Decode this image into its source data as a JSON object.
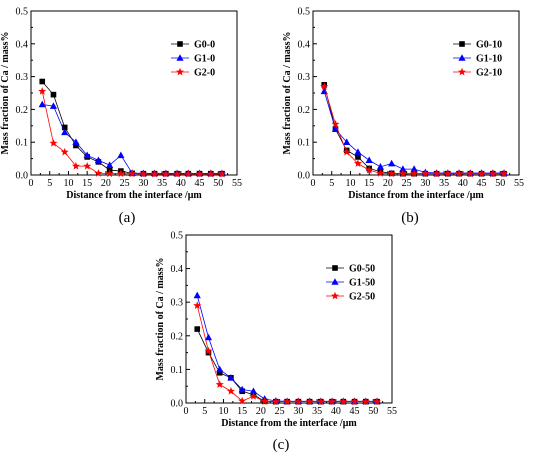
{
  "chart_data": [
    {
      "type": "line",
      "panel_label": "(a)",
      "xlabel": "Distance from the interface /μm",
      "ylabel": "Mass fraction of Ca / mass%",
      "xlim": [
        0,
        55
      ],
      "ylim": [
        0,
        0.5
      ],
      "xticks": [
        "0",
        "5",
        "10",
        "15",
        "20",
        "25",
        "30",
        "35",
        "40",
        "45",
        "50",
        "55"
      ],
      "yticks": [
        "0.0",
        "0.1",
        "0.2",
        "0.3",
        "0.4",
        "0.5"
      ],
      "legend_position": "upper-right",
      "series": [
        {
          "name": "G0-0",
          "color": "#000000",
          "marker": "square",
          "points": [
            [
              3,
              0.285
            ],
            [
              6,
              0.245
            ],
            [
              9,
              0.145
            ],
            [
              12,
              0.09
            ],
            [
              15,
              0.055
            ],
            [
              18,
              0.04
            ],
            [
              21,
              0.015
            ],
            [
              24,
              0.012
            ],
            [
              27,
              0.005
            ],
            [
              30,
              0.004
            ],
            [
              33,
              0.004
            ],
            [
              36,
              0.004
            ],
            [
              39,
              0.004
            ],
            [
              42,
              0.004
            ],
            [
              45,
              0.004
            ],
            [
              48,
              0.004
            ],
            [
              51,
              0.004
            ]
          ]
        },
        {
          "name": "G1-0",
          "color": "#0000ff",
          "marker": "triangle",
          "points": [
            [
              3,
              0.215
            ],
            [
              6,
              0.21
            ],
            [
              9,
              0.13
            ],
            [
              12,
              0.1
            ],
            [
              15,
              0.06
            ],
            [
              18,
              0.045
            ],
            [
              21,
              0.03
            ],
            [
              24,
              0.06
            ],
            [
              27,
              0.006
            ],
            [
              30,
              0.005
            ],
            [
              33,
              0.005
            ],
            [
              36,
              0.005
            ],
            [
              39,
              0.005
            ],
            [
              42,
              0.005
            ],
            [
              45,
              0.005
            ],
            [
              48,
              0.005
            ],
            [
              51,
              0.005
            ]
          ]
        },
        {
          "name": "G2-0",
          "color": "#ff0000",
          "marker": "star",
          "points": [
            [
              3,
              0.255
            ],
            [
              6,
              0.097
            ],
            [
              9,
              0.07
            ],
            [
              12,
              0.027
            ],
            [
              15,
              0.027
            ],
            [
              18,
              0.005
            ],
            [
              21,
              0.004
            ],
            [
              24,
              0.004
            ],
            [
              27,
              0.004
            ],
            [
              30,
              0.003
            ],
            [
              33,
              0.003
            ],
            [
              36,
              0.003
            ],
            [
              39,
              0.003
            ],
            [
              42,
              0.003
            ],
            [
              45,
              0.003
            ],
            [
              48,
              0.003
            ],
            [
              51,
              0.003
            ]
          ]
        }
      ]
    },
    {
      "type": "line",
      "panel_label": "(b)",
      "xlabel": "Distance from the interface /μm",
      "ylabel": "Mass fraction of Ca / mass%",
      "xlim": [
        0,
        55
      ],
      "ylim": [
        0,
        0.5
      ],
      "xticks": [
        "0",
        "5",
        "10",
        "15",
        "20",
        "25",
        "30",
        "35",
        "40",
        "45",
        "50",
        "55"
      ],
      "yticks": [
        "0.0",
        "0.1",
        "0.2",
        "0.3",
        "0.4",
        "0.5"
      ],
      "legend_position": "upper-right",
      "series": [
        {
          "name": "G0-10",
          "color": "#000000",
          "marker": "square",
          "points": [
            [
              3,
              0.275
            ],
            [
              6,
              0.14
            ],
            [
              9,
              0.075
            ],
            [
              12,
              0.055
            ],
            [
              15,
              0.02
            ],
            [
              18,
              0.01
            ],
            [
              21,
              0.005
            ],
            [
              24,
              0.004
            ],
            [
              27,
              0.004
            ],
            [
              30,
              0.004
            ],
            [
              33,
              0.004
            ],
            [
              36,
              0.004
            ],
            [
              39,
              0.004
            ],
            [
              42,
              0.004
            ],
            [
              45,
              0.004
            ],
            [
              48,
              0.004
            ],
            [
              51,
              0.004
            ]
          ]
        },
        {
          "name": "G1-10",
          "color": "#0000ff",
          "marker": "triangle",
          "points": [
            [
              3,
              0.255
            ],
            [
              6,
              0.14
            ],
            [
              9,
              0.1
            ],
            [
              12,
              0.07
            ],
            [
              15,
              0.045
            ],
            [
              18,
              0.025
            ],
            [
              21,
              0.035
            ],
            [
              24,
              0.018
            ],
            [
              27,
              0.018
            ],
            [
              30,
              0.008
            ],
            [
              33,
              0.006
            ],
            [
              36,
              0.006
            ],
            [
              39,
              0.006
            ],
            [
              42,
              0.006
            ],
            [
              45,
              0.006
            ],
            [
              48,
              0.006
            ],
            [
              51,
              0.006
            ]
          ]
        },
        {
          "name": "G2-10",
          "color": "#ff0000",
          "marker": "star",
          "points": [
            [
              3,
              0.27
            ],
            [
              6,
              0.155
            ],
            [
              9,
              0.07
            ],
            [
              12,
              0.035
            ],
            [
              15,
              0.015
            ],
            [
              18,
              0.005
            ],
            [
              21,
              0.004
            ],
            [
              24,
              0.004
            ],
            [
              27,
              0.004
            ],
            [
              30,
              0.004
            ],
            [
              33,
              0.004
            ],
            [
              36,
              0.004
            ],
            [
              39,
              0.004
            ],
            [
              42,
              0.004
            ],
            [
              45,
              0.004
            ],
            [
              48,
              0.004
            ],
            [
              51,
              0.004
            ]
          ]
        }
      ]
    },
    {
      "type": "line",
      "panel_label": "(c)",
      "xlabel": "Distance from the interface /μm",
      "ylabel": "Mass fraction of Ca / mass%",
      "xlim": [
        0,
        55
      ],
      "ylim": [
        0,
        0.5
      ],
      "xticks": [
        "0",
        "5",
        "10",
        "15",
        "20",
        "25",
        "30",
        "35",
        "40",
        "45",
        "50",
        "55"
      ],
      "yticks": [
        "0.0",
        "0.1",
        "0.2",
        "0.3",
        "0.4",
        "0.5"
      ],
      "legend_position": "upper-right",
      "series": [
        {
          "name": "G0-50",
          "color": "#000000",
          "marker": "square",
          "points": [
            [
              3,
              0.22
            ],
            [
              6,
              0.15
            ],
            [
              9,
              0.09
            ],
            [
              12,
              0.075
            ],
            [
              15,
              0.035
            ],
            [
              18,
              0.025
            ],
            [
              21,
              0.005
            ],
            [
              24,
              0.004
            ],
            [
              27,
              0.004
            ],
            [
              30,
              0.004
            ],
            [
              33,
              0.004
            ],
            [
              36,
              0.004
            ],
            [
              39,
              0.004
            ],
            [
              42,
              0.004
            ],
            [
              45,
              0.004
            ],
            [
              48,
              0.004
            ],
            [
              51,
              0.004
            ]
          ]
        },
        {
          "name": "G1-50",
          "color": "#0000ff",
          "marker": "triangle",
          "points": [
            [
              3,
              0.32
            ],
            [
              6,
              0.195
            ],
            [
              9,
              0.1
            ],
            [
              12,
              0.075
            ],
            [
              15,
              0.04
            ],
            [
              18,
              0.035
            ],
            [
              21,
              0.012
            ],
            [
              24,
              0.006
            ],
            [
              27,
              0.005
            ],
            [
              30,
              0.005
            ],
            [
              33,
              0.005
            ],
            [
              36,
              0.005
            ],
            [
              39,
              0.005
            ],
            [
              42,
              0.005
            ],
            [
              45,
              0.005
            ],
            [
              48,
              0.005
            ],
            [
              51,
              0.005
            ]
          ]
        },
        {
          "name": "G2-50",
          "color": "#ff0000",
          "marker": "star",
          "points": [
            [
              3,
              0.29
            ],
            [
              6,
              0.155
            ],
            [
              9,
              0.055
            ],
            [
              12,
              0.035
            ],
            [
              15,
              0.006
            ],
            [
              18,
              0.02
            ],
            [
              21,
              0.005
            ],
            [
              24,
              0.004
            ],
            [
              27,
              0.004
            ],
            [
              30,
              0.004
            ],
            [
              33,
              0.004
            ],
            [
              36,
              0.004
            ],
            [
              39,
              0.004
            ],
            [
              42,
              0.004
            ],
            [
              45,
              0.004
            ],
            [
              48,
              0.004
            ],
            [
              51,
              0.004
            ]
          ]
        }
      ]
    }
  ]
}
